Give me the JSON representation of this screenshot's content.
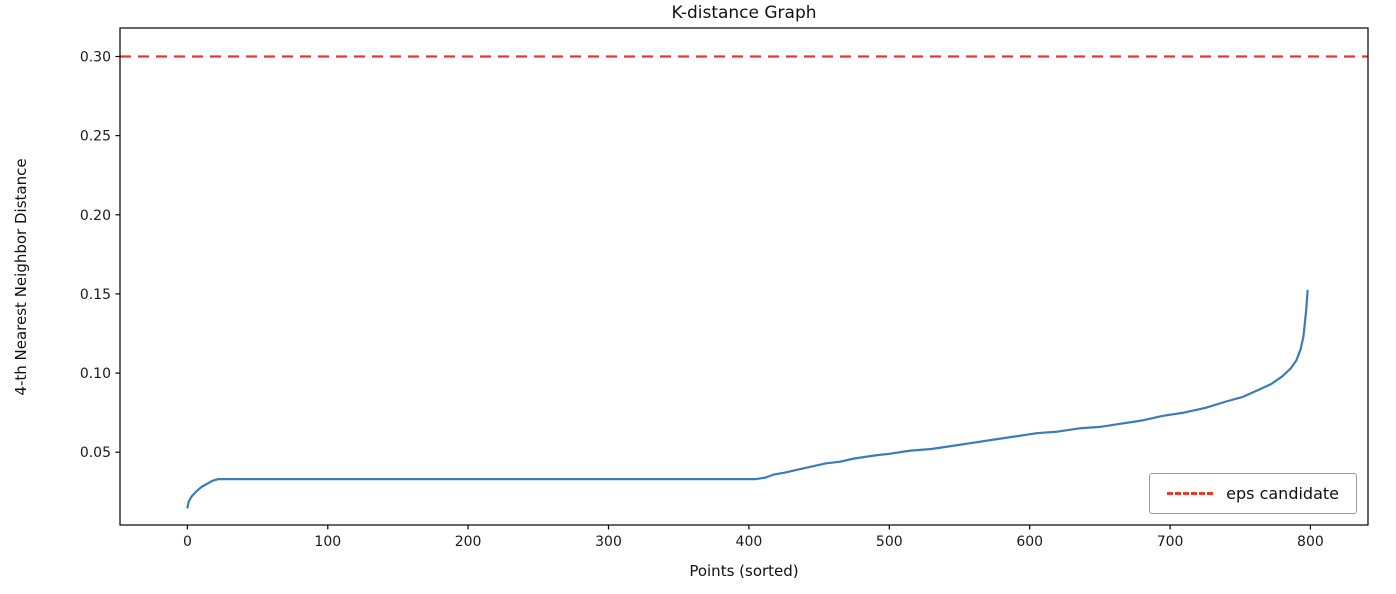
{
  "figure": {
    "background": "#ffffff"
  },
  "chart_data": {
    "type": "line",
    "title": "K-distance Graph",
    "xlabel": "Points (sorted)",
    "ylabel": "4-th Nearest Neighbor Distance",
    "xlim": [
      -48,
      841
    ],
    "ylim": [
      0.004,
      0.318
    ],
    "x_ticks": [
      0,
      100,
      200,
      300,
      400,
      500,
      600,
      700,
      800
    ],
    "y_ticks": [
      0.05,
      0.1,
      0.15,
      0.2,
      0.25,
      0.3
    ],
    "grid": false,
    "axis_color": "#000000",
    "tick_label_color": "#1a1a1a",
    "series": [
      {
        "name": "4-th nearest neighbor distance (sorted)",
        "type": "line",
        "color": "#3b7cb8",
        "linewidth": 2.2,
        "points": [
          [
            0,
            0.015
          ],
          [
            1,
            0.019
          ],
          [
            3,
            0.022
          ],
          [
            6,
            0.025
          ],
          [
            10,
            0.028
          ],
          [
            14,
            0.03
          ],
          [
            18,
            0.032
          ],
          [
            22,
            0.033
          ],
          [
            60,
            0.033
          ],
          [
            120,
            0.033
          ],
          [
            200,
            0.033
          ],
          [
            280,
            0.033
          ],
          [
            360,
            0.033
          ],
          [
            405,
            0.033
          ],
          [
            412,
            0.034
          ],
          [
            418,
            0.036
          ],
          [
            425,
            0.037
          ],
          [
            435,
            0.039
          ],
          [
            445,
            0.041
          ],
          [
            455,
            0.043
          ],
          [
            465,
            0.044
          ],
          [
            475,
            0.046
          ],
          [
            490,
            0.048
          ],
          [
            500,
            0.049
          ],
          [
            515,
            0.051
          ],
          [
            530,
            0.052
          ],
          [
            545,
            0.054
          ],
          [
            560,
            0.056
          ],
          [
            575,
            0.058
          ],
          [
            590,
            0.06
          ],
          [
            605,
            0.062
          ],
          [
            620,
            0.063
          ],
          [
            635,
            0.065
          ],
          [
            650,
            0.066
          ],
          [
            665,
            0.068
          ],
          [
            680,
            0.07
          ],
          [
            695,
            0.073
          ],
          [
            710,
            0.075
          ],
          [
            725,
            0.078
          ],
          [
            740,
            0.082
          ],
          [
            752,
            0.085
          ],
          [
            762,
            0.089
          ],
          [
            772,
            0.093
          ],
          [
            780,
            0.098
          ],
          [
            786,
            0.103
          ],
          [
            790,
            0.108
          ],
          [
            793,
            0.115
          ],
          [
            795,
            0.123
          ],
          [
            796,
            0.131
          ],
          [
            797,
            0.14
          ],
          [
            798,
            0.152
          ]
        ]
      },
      {
        "name": "eps candidate",
        "type": "hline",
        "color": "#e8382c",
        "linewidth": 2.2,
        "dash": [
          11,
          7
        ],
        "y": 0.3
      }
    ],
    "legend": {
      "position": "lower right",
      "entries": [
        {
          "label": "eps candidate",
          "color": "#e8382c",
          "style": "dashed"
        }
      ]
    }
  }
}
